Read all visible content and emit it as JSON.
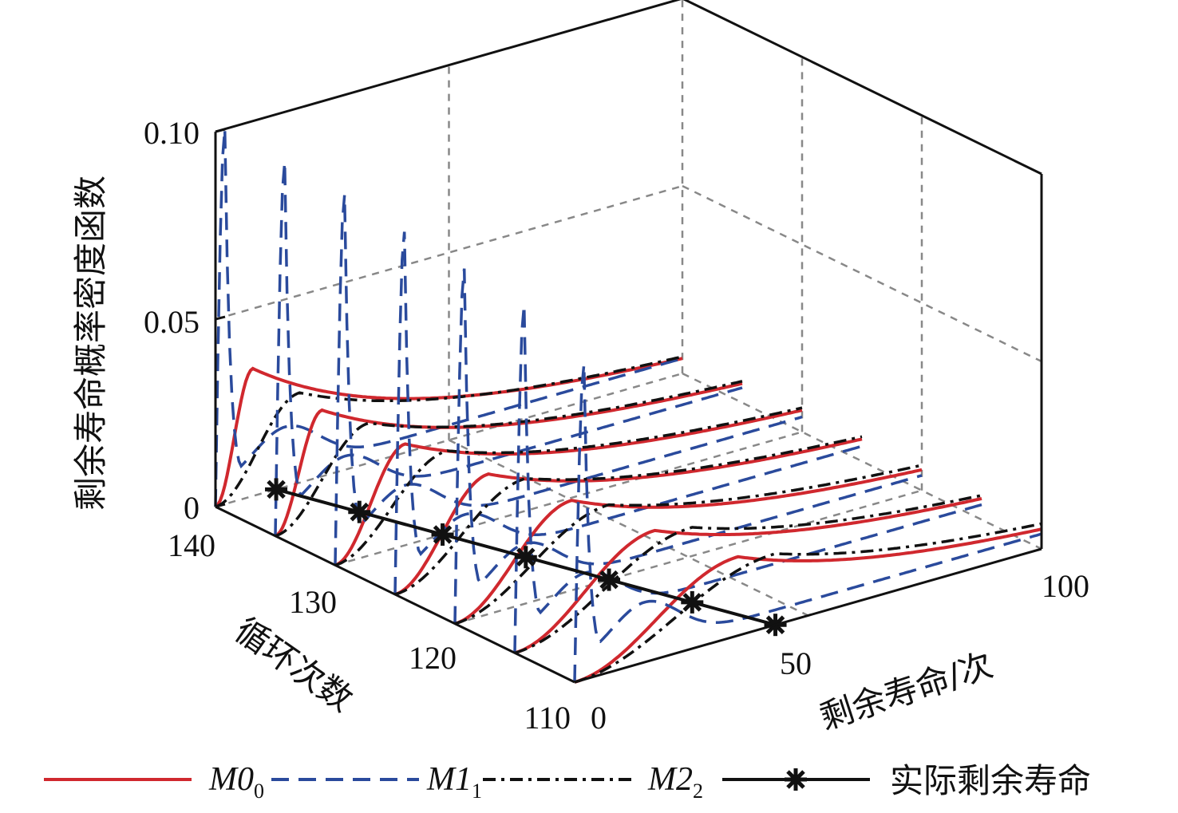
{
  "chart_data": {
    "type": "line",
    "projection": "3d-waterfall",
    "xlabel": "剩余寿命/次",
    "ylabel": "循环次数",
    "zlabel": "剩余寿命概率密度函数",
    "xlim": [
      0,
      100
    ],
    "ylim": [
      110,
      140
    ],
    "zlim": [
      0,
      0.1
    ],
    "xticks": [
      "0",
      "50",
      "100"
    ],
    "yticks": [
      "110",
      "120",
      "130",
      "140"
    ],
    "zticks": [
      "0",
      "0.05",
      "0.10"
    ],
    "grid": true,
    "legend_position": "bottom",
    "cycles": [
      140,
      135,
      130,
      125,
      120,
      115,
      110
    ],
    "series": [
      {
        "name": "M0",
        "sub": "0",
        "color": "#d0282e",
        "style": "solid",
        "peak_rul": [
          8,
          10,
          15,
          20,
          25,
          30,
          35
        ],
        "peak_pdf": [
          0.034,
          0.03,
          0.027,
          0.025,
          0.024,
          0.022,
          0.021
        ],
        "tail_pdf": [
          0.003,
          0.005,
          0.006,
          0.006,
          0.005,
          0.005,
          0.004
        ]
      },
      {
        "name": "M1",
        "sub": "1",
        "color": "#2a4a9c",
        "style": "dashed",
        "peak_rul": [
          2,
          2,
          2,
          2,
          2,
          2,
          2
        ],
        "peak_pdf": [
          0.1,
          0.099,
          0.098,
          0.096,
          0.094,
          0.092,
          0.084
        ],
        "tail_pdf": [
          0.004,
          0.004,
          0.004,
          0.004,
          0.004,
          0.004,
          0.004
        ]
      },
      {
        "name": "M2",
        "sub": "2",
        "color": "#111111",
        "style": "dashdot",
        "peak_rul": [
          18,
          20,
          24,
          28,
          33,
          38,
          43
        ],
        "peak_pdf": [
          0.024,
          0.023,
          0.022,
          0.021,
          0.02,
          0.02,
          0.019
        ],
        "tail_pdf": [
          0.004,
          0.006,
          0.007,
          0.007,
          0.007,
          0.006,
          0.006
        ]
      }
    ],
    "actual_rul": {
      "name": "实际剩余寿命",
      "cycles": [
        140,
        135,
        130,
        125,
        120,
        115,
        110
      ],
      "rul": [
        13,
        18,
        23,
        28,
        33,
        38,
        43
      ]
    }
  }
}
